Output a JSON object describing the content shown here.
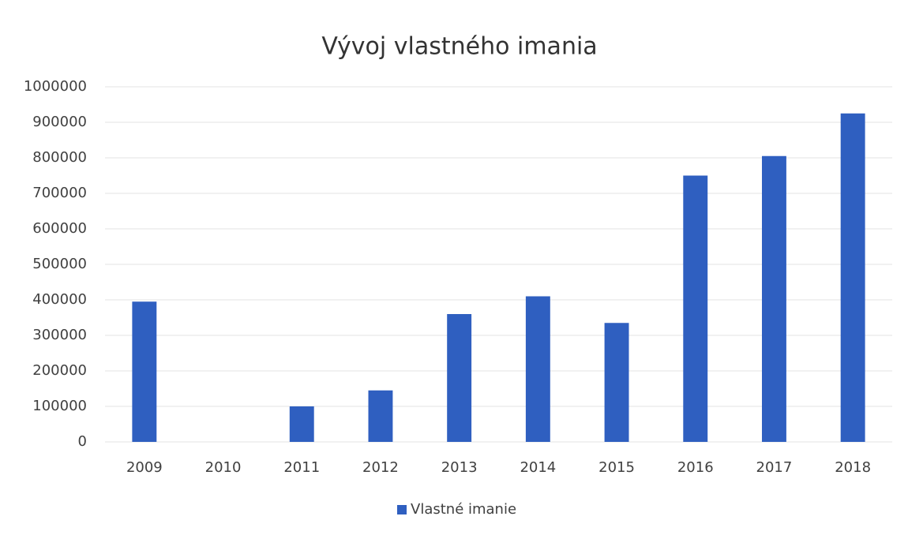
{
  "chart_data": {
    "type": "bar",
    "title": "Vývoj vlastného imania",
    "categories": [
      "2009",
      "2010",
      "2011",
      "2012",
      "2013",
      "2014",
      "2015",
      "2016",
      "2017",
      "2018"
    ],
    "series": [
      {
        "name": "Vlastné imanie",
        "color": "#2f5fc0",
        "values": [
          395000,
          0,
          100000,
          145000,
          360000,
          410000,
          335000,
          750000,
          805000,
          925000
        ]
      }
    ],
    "ylim": [
      0,
      1000000
    ],
    "yticks": [
      0,
      100000,
      200000,
      300000,
      400000,
      500000,
      600000,
      700000,
      800000,
      900000,
      1000000
    ],
    "grid": true,
    "legend": "bottom"
  }
}
